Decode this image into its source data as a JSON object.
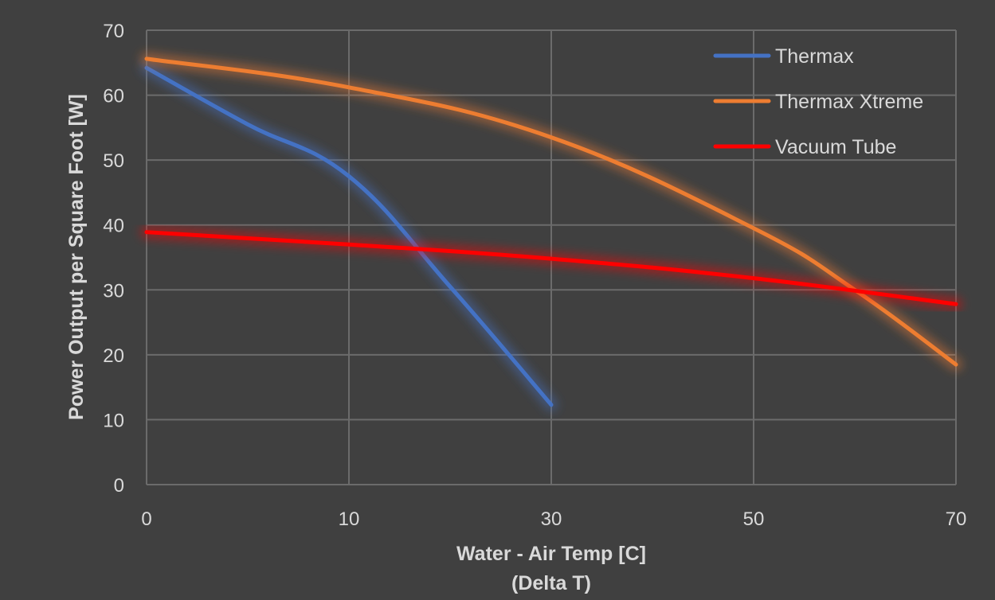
{
  "chart_data": {
    "type": "line",
    "xlabel_line1": "Water - Air Temp [C]",
    "xlabel_line2": "(Delta T)",
    "ylabel": "Power Output per Square Foot [W]",
    "categories": [
      "0",
      "10",
      "30",
      "50",
      "70"
    ],
    "ylim": [
      0,
      70
    ],
    "yticks": [
      "0",
      "10",
      "20",
      "30",
      "40",
      "50",
      "60",
      "70"
    ],
    "grid": true,
    "legend_position": "top-right",
    "series": [
      {
        "name": "Thermax",
        "color": "#4472C4",
        "x": [
          0,
          0.5,
          1,
          1.5,
          2
        ],
        "values": [
          64.2,
          55.5,
          47.5,
          30.5,
          12.3
        ]
      },
      {
        "name": "Thermax Xtreme",
        "color": "#ED7D31",
        "x": [
          0,
          1,
          2,
          3,
          3.5,
          4
        ],
        "values": [
          65.6,
          61.2,
          53.5,
          39.5,
          30.0,
          18.5
        ]
      },
      {
        "name": "Vacuum Tube",
        "color": "#FF0000",
        "x": [
          0,
          1,
          2,
          3,
          4
        ],
        "values": [
          38.9,
          37.0,
          34.8,
          31.8,
          27.8
        ]
      }
    ]
  }
}
